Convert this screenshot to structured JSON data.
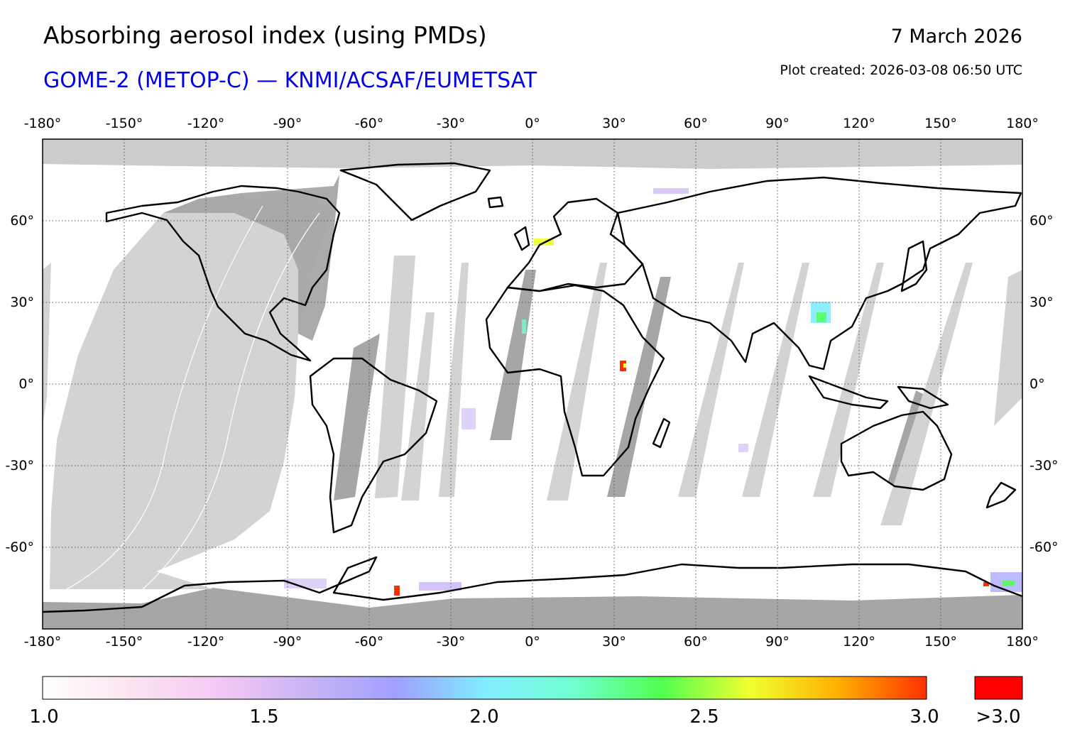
{
  "header": {
    "title": "Absorbing aerosol index (using PMDs)",
    "subtitle": "GOME-2 (METOP-C) — KNMI/ACSAF/EUMETSAT",
    "date": "7 March 2026",
    "created": "Plot created: 2026-03-08 06:50 UTC"
  },
  "map": {
    "projection": "equirectangular",
    "lon_range": [
      -180,
      180
    ],
    "lat_range": [
      -90,
      90
    ],
    "lon_ticks": [
      "-180°",
      "-150°",
      "-120°",
      "-90°",
      "-60°",
      "-30°",
      "0°",
      "30°",
      "60°",
      "90°",
      "120°",
      "150°",
      "180°"
    ],
    "lat_ticks": [
      "60°",
      "30°",
      "0°",
      "-30°",
      "-60°"
    ],
    "colors": {
      "no_data_polar": "#cccccc",
      "gap_light": "#d3d3d3",
      "gap_dark": "#a6a6a6",
      "land_outline": "#000000",
      "grid": "#555555"
    }
  },
  "colorbar": {
    "labels": [
      "1.0",
      "1.5",
      "2.0",
      "2.5",
      "3.0"
    ],
    "over_label": ">3.0",
    "min": 1.0,
    "max": 3.0,
    "stops": [
      "#ffffff",
      "#fbe4f0",
      "#f3c8f4",
      "#c8b4f4",
      "#a0a0ff",
      "#80ecff",
      "#70ffd0",
      "#50ff50",
      "#f0ff30",
      "#ffb000",
      "#ff3000"
    ],
    "over_color": "#ff0000"
  }
}
